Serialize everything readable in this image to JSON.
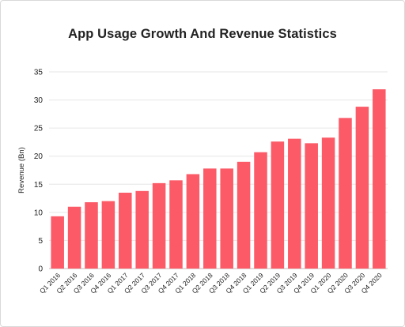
{
  "chart_data": {
    "type": "bar",
    "title": "App Usage Growth And Revenue Statistics",
    "xlabel": "",
    "ylabel": "Revenue (Bn)",
    "ylim": [
      0,
      35
    ],
    "yticks": [
      0,
      5,
      10,
      15,
      20,
      25,
      30,
      35
    ],
    "grid": true,
    "legend": "none",
    "bar_color": "#fb5a66",
    "categories": [
      "Q1 2016",
      "Q2 2016",
      "Q3 2016",
      "Q4 2016",
      "Q1 2017",
      "Q2 2017",
      "Q3 2017",
      "Q4 2017",
      "Q1 2018",
      "Q2 2018",
      "Q3 2018",
      "Q4 2018",
      "Q1 2019",
      "Q2 2019",
      "Q3 2019",
      "Q4 2019",
      "Q1 2020",
      "Q2 2020",
      "Q3 2020",
      "Q4 2020"
    ],
    "values": [
      9.3,
      11.0,
      11.8,
      12.0,
      13.5,
      13.8,
      15.2,
      15.7,
      16.8,
      17.8,
      17.8,
      19.0,
      20.7,
      22.6,
      23.1,
      22.3,
      23.3,
      26.8,
      28.8,
      31.9
    ]
  }
}
